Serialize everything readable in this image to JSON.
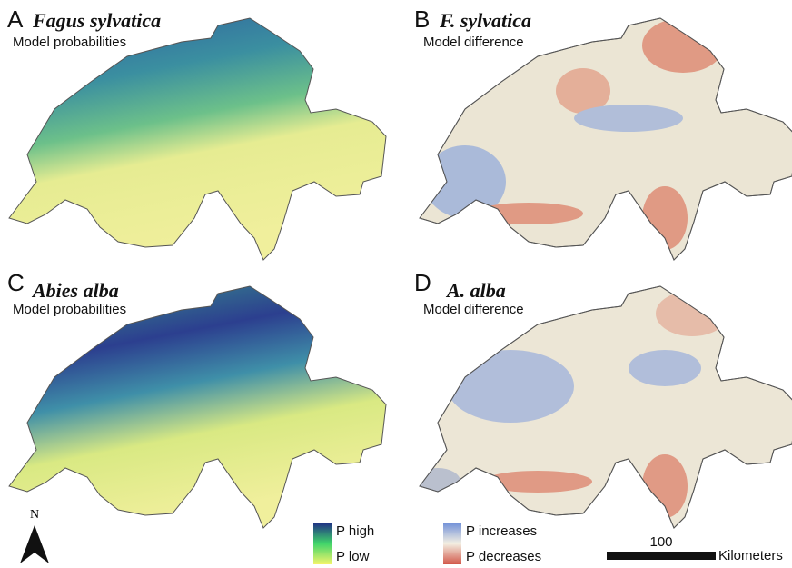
{
  "panels": [
    {
      "letter": "A",
      "species": "Fagus sylvatica",
      "subtitle": "Model probabilities"
    },
    {
      "letter": "B",
      "species": "F. sylvatica",
      "subtitle": "Model difference"
    },
    {
      "letter": "C",
      "species": "Abies alba",
      "subtitle": "Model probabilities"
    },
    {
      "letter": "D",
      "species": "A. alba",
      "subtitle": "Model difference"
    }
  ],
  "legends": [
    {
      "high": "P high",
      "low": "P low"
    },
    {
      "high": "P increases",
      "low": "P decreases"
    }
  ],
  "north": "N",
  "scale": {
    "distance": "100",
    "unit": "Kilometers"
  }
}
